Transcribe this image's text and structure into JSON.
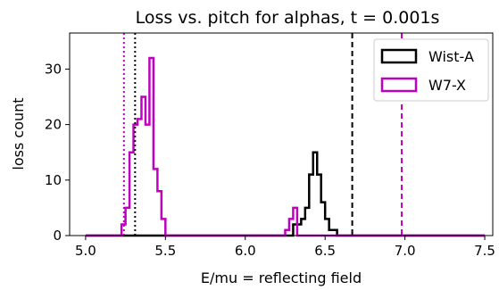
{
  "chart_data": {
    "type": "histogram",
    "title": "Loss vs. pitch for alphas, t = 0.001s",
    "xlabel": "E/mu = reflecting field",
    "ylabel": "loss count",
    "xlim": [
      4.9,
      7.55
    ],
    "ylim": [
      0,
      36.5
    ],
    "xticks": [
      5.0,
      5.5,
      6.0,
      6.5,
      7.0,
      7.5
    ],
    "xtick_labels": [
      "5.0",
      "5.5",
      "6.0",
      "6.5",
      "7.0",
      "7.5"
    ],
    "yticks": [
      0,
      10,
      20,
      30
    ],
    "ytick_labels": [
      "0",
      "10",
      "20",
      "30"
    ],
    "grid": false,
    "legend_position": "top-right",
    "series": [
      {
        "name": "Wist-A",
        "color": "#000000",
        "bin_edges": [
          5.0,
          5.025,
          5.05,
          5.075,
          5.1,
          5.125,
          5.15,
          5.175,
          5.2,
          5.225,
          5.25,
          5.275,
          5.3,
          5.325,
          5.35,
          5.375,
          5.4,
          5.425,
          5.45,
          5.475,
          5.5,
          5.525,
          5.55,
          5.575,
          5.6,
          5.625,
          5.65,
          5.675,
          5.7,
          5.725,
          5.75,
          5.775,
          5.8,
          5.825,
          5.85,
          5.875,
          5.9,
          5.925,
          5.95,
          5.975,
          6.0,
          6.025,
          6.05,
          6.075,
          6.1,
          6.125,
          6.15,
          6.175,
          6.2,
          6.225,
          6.25,
          6.275,
          6.3,
          6.325,
          6.35,
          6.375,
          6.4,
          6.425,
          6.45,
          6.475,
          6.5,
          6.525,
          6.55,
          6.575,
          6.6,
          6.625,
          6.65,
          6.675,
          6.7,
          6.725,
          6.75,
          6.775,
          6.8,
          6.825,
          6.85,
          6.875,
          6.9,
          6.925,
          6.95,
          6.975,
          7.0,
          7.025,
          7.05,
          7.075,
          7.1,
          7.125,
          7.15,
          7.175,
          7.2,
          7.225,
          7.25,
          7.275,
          7.3,
          7.325,
          7.35,
          7.375,
          7.4,
          7.425,
          7.45,
          7.475,
          7.5
        ],
        "counts": [
          0,
          0,
          0,
          0,
          0,
          0,
          0,
          0,
          0,
          0,
          0,
          0,
          0,
          0,
          0,
          0,
          0,
          0,
          0,
          0,
          0,
          0,
          0,
          0,
          0,
          0,
          0,
          0,
          0,
          0,
          0,
          0,
          0,
          0,
          0,
          0,
          0,
          0,
          0,
          0,
          0,
          0,
          0,
          0,
          0,
          0,
          0,
          0,
          0,
          0,
          0,
          0,
          2,
          2,
          3,
          5,
          11,
          15,
          11,
          6,
          3,
          1,
          1,
          0,
          0,
          0,
          0,
          0,
          0,
          0,
          0,
          0,
          0,
          0,
          0,
          0,
          0,
          0,
          0,
          0,
          0,
          0,
          0,
          0,
          0,
          0,
          0,
          0,
          0,
          0,
          0,
          0,
          0,
          0,
          0,
          0,
          0,
          0,
          0,
          0
        ],
        "vlines": [
          5.31,
          6.67
        ]
      },
      {
        "name": "W7-X",
        "color": "#bf00bf",
        "bin_edges": [
          5.0,
          5.025,
          5.05,
          5.075,
          5.1,
          5.125,
          5.15,
          5.175,
          5.2,
          5.225,
          5.25,
          5.275,
          5.3,
          5.325,
          5.35,
          5.375,
          5.4,
          5.425,
          5.45,
          5.475,
          5.5,
          5.525,
          5.55,
          5.575,
          5.6,
          5.625,
          5.65,
          5.675,
          5.7,
          5.725,
          5.75,
          5.775,
          5.8,
          5.825,
          5.85,
          5.875,
          5.9,
          5.925,
          5.95,
          5.975,
          6.0,
          6.025,
          6.05,
          6.075,
          6.1,
          6.125,
          6.15,
          6.175,
          6.2,
          6.225,
          6.25,
          6.275,
          6.3,
          6.325,
          6.35,
          6.375,
          6.4,
          6.425,
          6.45,
          6.475,
          6.5,
          6.525,
          6.55,
          6.575,
          6.6,
          6.625,
          6.65,
          6.675,
          6.7,
          6.725,
          6.75,
          6.775,
          6.8,
          6.825,
          6.85,
          6.875,
          6.9,
          6.925,
          6.95,
          6.975,
          7.0,
          7.025,
          7.05,
          7.075,
          7.1,
          7.125,
          7.15,
          7.175,
          7.2,
          7.225,
          7.25,
          7.275,
          7.3,
          7.325,
          7.35,
          7.375,
          7.4,
          7.425,
          7.45,
          7.475,
          7.5
        ],
        "counts": [
          0,
          0,
          0,
          0,
          0,
          0,
          0,
          0,
          0,
          2,
          5,
          15,
          20,
          21,
          25,
          20,
          32,
          12,
          8,
          3,
          0,
          0,
          0,
          0,
          0,
          0,
          0,
          0,
          0,
          0,
          0,
          0,
          0,
          0,
          0,
          0,
          0,
          0,
          0,
          0,
          0,
          0,
          0,
          0,
          0,
          0,
          0,
          0,
          0,
          0,
          1,
          3,
          5,
          0,
          0,
          0,
          0,
          0,
          0,
          0,
          0,
          0,
          0,
          0,
          0,
          0,
          0,
          0,
          0,
          0,
          0,
          0,
          0,
          0,
          0,
          0,
          0,
          0,
          0,
          0,
          0,
          0,
          0,
          0,
          0,
          0,
          0,
          0,
          0,
          0,
          0,
          0,
          0,
          0,
          0,
          0,
          0,
          0,
          0,
          0
        ],
        "vlines": [
          5.24,
          6.98
        ]
      }
    ]
  }
}
